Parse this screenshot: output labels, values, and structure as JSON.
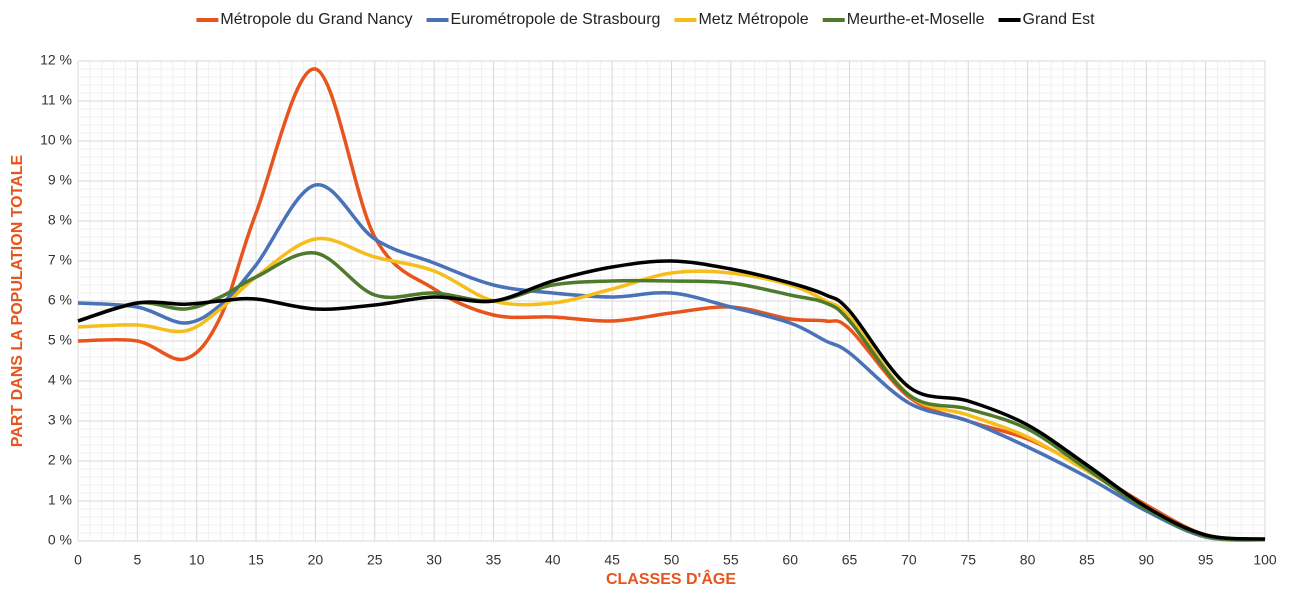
{
  "chart_data": {
    "type": "line",
    "xlabel": "CLASSES D'ÂGE",
    "ylabel": "PART DANS LA POPULATION TOTALE",
    "x": [
      0,
      5,
      9,
      12,
      15,
      20,
      25,
      30,
      35,
      40,
      45,
      50,
      55,
      60,
      63,
      65,
      70,
      75,
      80,
      85,
      90,
      95,
      100
    ],
    "series": [
      {
        "name": "Métropole du Grand Nancy",
        "color": "#e8541d",
        "values": [
          5.0,
          5.0,
          4.55,
          5.6,
          8.2,
          11.8,
          7.6,
          6.3,
          5.65,
          5.6,
          5.5,
          5.7,
          5.85,
          5.55,
          5.5,
          5.3,
          3.6,
          3.0,
          2.55,
          1.8,
          0.9,
          0.15,
          0.03
        ]
      },
      {
        "name": "Eurométropole de Strasbourg",
        "color": "#4a72b8",
        "values": [
          5.95,
          5.85,
          5.45,
          5.9,
          6.9,
          8.9,
          7.55,
          6.95,
          6.4,
          6.2,
          6.1,
          6.2,
          5.85,
          5.45,
          5.0,
          4.7,
          3.45,
          3.0,
          2.35,
          1.6,
          0.75,
          0.1,
          0.03
        ]
      },
      {
        "name": "Metz Métropole",
        "color": "#f5be1b",
        "values": [
          5.35,
          5.4,
          5.25,
          5.8,
          6.6,
          7.55,
          7.1,
          6.75,
          6.0,
          5.95,
          6.3,
          6.7,
          6.7,
          6.4,
          6.0,
          5.6,
          3.65,
          3.15,
          2.6,
          1.75,
          0.85,
          0.12,
          0.03
        ]
      },
      {
        "name": "Meurthe-et-Moselle",
        "color": "#4e7a2e",
        "values": [
          5.5,
          5.95,
          5.8,
          6.1,
          6.6,
          7.2,
          6.15,
          6.2,
          6.0,
          6.4,
          6.5,
          6.5,
          6.45,
          6.15,
          5.95,
          5.5,
          3.65,
          3.3,
          2.8,
          1.8,
          0.8,
          0.12,
          0.03
        ]
      },
      {
        "name": "Grand Est",
        "color": "#000000",
        "values": [
          5.5,
          5.95,
          5.92,
          6.0,
          6.05,
          5.8,
          5.9,
          6.1,
          6.0,
          6.5,
          6.85,
          7.0,
          6.8,
          6.45,
          6.15,
          5.75,
          3.85,
          3.5,
          2.9,
          1.9,
          0.85,
          0.15,
          0.05
        ]
      }
    ],
    "xlim": [
      0,
      100
    ],
    "xticks": [
      0,
      5,
      10,
      15,
      20,
      25,
      30,
      35,
      40,
      45,
      50,
      55,
      60,
      65,
      70,
      75,
      80,
      85,
      90,
      95,
      100
    ],
    "ylim": [
      0,
      12
    ],
    "yticks": [
      {
        "value": 0,
        "label": "0 %"
      },
      {
        "value": 1,
        "label": "1 %"
      },
      {
        "value": 2,
        "label": "2 %"
      },
      {
        "value": 3,
        "label": "3 %"
      },
      {
        "value": 4,
        "label": "4 %"
      },
      {
        "value": 5,
        "label": "5 %"
      },
      {
        "value": 6,
        "label": "6 %"
      },
      {
        "value": 7,
        "label": "7 %"
      },
      {
        "value": 8,
        "label": "8 %"
      },
      {
        "value": 9,
        "label": "9 %"
      },
      {
        "value": 10,
        "label": "10 %"
      },
      {
        "value": 11,
        "label": "11 %"
      },
      {
        "value": 12,
        "label": "12 %"
      }
    ],
    "grid": true,
    "legend": "top"
  }
}
